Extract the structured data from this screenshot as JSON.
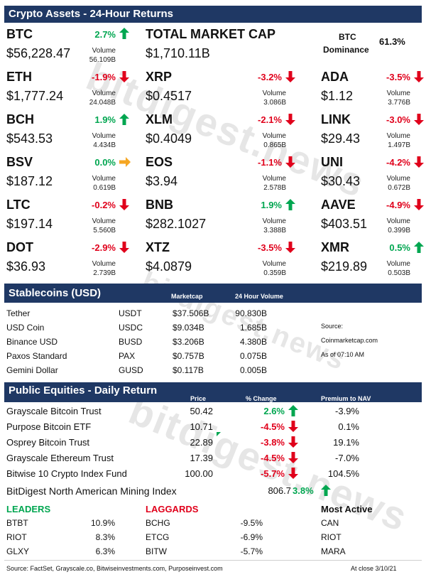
{
  "crypto": {
    "title": "Crypto Assets - 24-Hour Returns",
    "volume_label": "Volume",
    "btc": {
      "symbol": "BTC",
      "change": "2.7%",
      "price": "$56,228.47",
      "volume": "56.109B"
    },
    "total_market_cap": {
      "label": "TOTAL MARKET CAP",
      "value": "$1,710.11B"
    },
    "btc_dominance": {
      "label_line1": "BTC",
      "label_line2": "Dominance",
      "value": "61.3%"
    },
    "rows": [
      [
        {
          "symbol": "ETH",
          "change": "-1.9%",
          "dir": "down",
          "price": "$1,777.24",
          "volume": "24.048B"
        },
        {
          "symbol": "XRP",
          "change": "-3.2%",
          "dir": "down",
          "price": "$0.4517",
          "volume": "3.086B"
        },
        {
          "symbol": "ADA",
          "change": "-3.5%",
          "dir": "down",
          "price": "$1.12",
          "volume": "3.776B"
        }
      ],
      [
        {
          "symbol": "BCH",
          "change": "1.9%",
          "dir": "up",
          "price": "$543.53",
          "volume": "4.434B"
        },
        {
          "symbol": "XLM",
          "change": "-2.1%",
          "dir": "down",
          "price": "$0.4049",
          "volume": "0.865B"
        },
        {
          "symbol": "LINK",
          "change": "-3.0%",
          "dir": "down",
          "price": "$29.43",
          "volume": "1.497B"
        }
      ],
      [
        {
          "symbol": "BSV",
          "change": "0.0%",
          "dir": "flat",
          "price": "$187.12",
          "volume": "0.619B"
        },
        {
          "symbol": "EOS",
          "change": "-1.1%",
          "dir": "down",
          "price": "$3.94",
          "volume": "2.578B"
        },
        {
          "symbol": "UNI",
          "change": "-4.2%",
          "dir": "down",
          "price": "$30.43",
          "volume": "0.672B"
        }
      ],
      [
        {
          "symbol": "LTC",
          "change": "-0.2%",
          "dir": "down",
          "price": "$197.14",
          "volume": "5.560B"
        },
        {
          "symbol": "BNB",
          "change": "1.9%",
          "dir": "up",
          "price": "$282.1027",
          "volume": "3.388B"
        },
        {
          "symbol": "AAVE",
          "change": "-4.9%",
          "dir": "down",
          "price": "$403.51",
          "volume": "0.399B"
        }
      ],
      [
        {
          "symbol": "DOT",
          "change": "-2.9%",
          "dir": "down",
          "price": "$36.93",
          "volume": "2.739B"
        },
        {
          "symbol": "XTZ",
          "change": "-3.5%",
          "dir": "down",
          "price": "$4.0879",
          "volume": "0.359B"
        },
        {
          "symbol": "XMR",
          "change": "0.5%",
          "dir": "up",
          "price": "$219.89",
          "volume": "0.503B"
        }
      ]
    ]
  },
  "stablecoins": {
    "title": "Stablecoins (USD)",
    "col_marketcap": "Marketcap",
    "col_volume": "24 Hour Volume",
    "rows": [
      {
        "name": "Tether",
        "ticker": "USDT",
        "marketcap": "$37.506B",
        "volume": "90.830B"
      },
      {
        "name": "USD Coin",
        "ticker": "USDC",
        "marketcap": "$9.034B",
        "volume": "1.685B"
      },
      {
        "name": "Binance USD",
        "ticker": "BUSD",
        "marketcap": "$3.206B",
        "volume": "4.380B"
      },
      {
        "name": "Paxos Standard",
        "ticker": "PAX",
        "marketcap": "$0.757B",
        "volume": "0.075B"
      },
      {
        "name": "Gemini Dollar",
        "ticker": "GUSD",
        "marketcap": "$0.117B",
        "volume": "0.005B"
      }
    ],
    "source_label": "Source:",
    "source_value": "Coinmarketcap.com",
    "as_of": "As of 07:10 AM"
  },
  "equities": {
    "title": "Public Equities - Daily Return",
    "col_price": "Price",
    "col_change": "% Change",
    "col_premium": "Premium to NAV",
    "rows": [
      {
        "name": "Grayscale Bitcoin Trust",
        "price": "50.42",
        "change": "2.6%",
        "dir": "up",
        "premium": "-3.9%"
      },
      {
        "name": "Purpose Bitcoin ETF",
        "price": "10.71",
        "change": "-4.5%",
        "dir": "down",
        "premium": "0.1%"
      },
      {
        "name": "Osprey Bitcoin Trust",
        "price": "22.89",
        "change": "-3.8%",
        "dir": "down",
        "premium": "19.1%"
      },
      {
        "name": "Grayscale Ethereum Trust",
        "price": "17.39",
        "change": "-4.5%",
        "dir": "down",
        "premium": "-7.0%"
      },
      {
        "name": "Bitwise 10 Crypto Index Fund",
        "price": "100.00",
        "change": "-5.7%",
        "dir": "down",
        "premium": "104.5%"
      }
    ],
    "mining_index": {
      "name": "BitDigest North American Mining Index",
      "value": "806.7",
      "change": "3.8%"
    }
  },
  "movers": {
    "leaders_title": "LEADERS",
    "laggards_title": "LAGGARDS",
    "active_title": "Most Active",
    "leaders": [
      {
        "ticker": "BTBT",
        "value": "10.9%"
      },
      {
        "ticker": "RIOT",
        "value": "8.3%"
      },
      {
        "ticker": "GLXY",
        "value": "6.3%"
      }
    ],
    "laggards": [
      {
        "ticker": "BCHG",
        "value": "-9.5%"
      },
      {
        "ticker": "ETCG",
        "value": "-6.9%"
      },
      {
        "ticker": "BITW",
        "value": "-5.7%"
      }
    ],
    "active": [
      "CAN",
      "RIOT",
      "MARA"
    ]
  },
  "footer": {
    "source": "Source: FactSet, Grayscale.co, Bitwiseinvestments.com, Purposeinvest.com",
    "close": "At close  3/10/21"
  },
  "watermark": "bitdigest.news",
  "colors": {
    "header_bg": "#1f3864",
    "up": "#00a650",
    "down": "#e0001b",
    "flat_arrow": "#f5a623"
  }
}
